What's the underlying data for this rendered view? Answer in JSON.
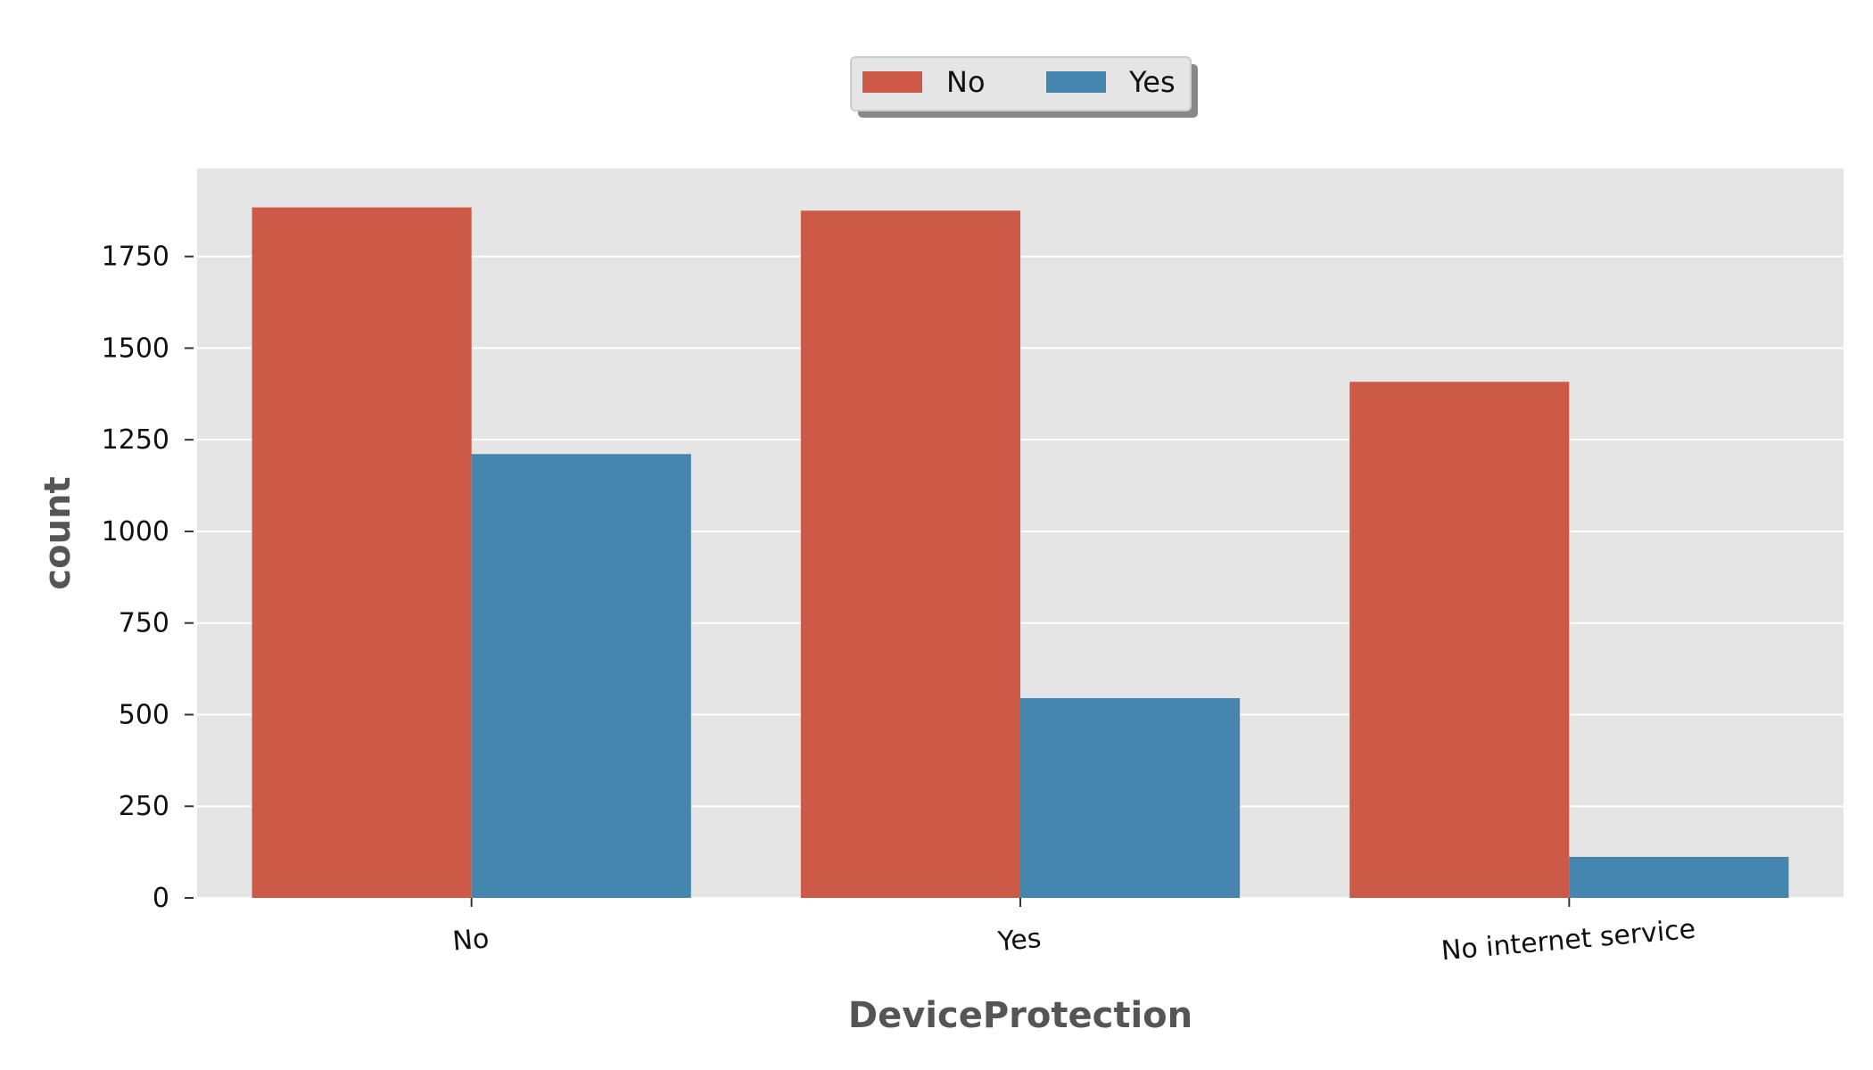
{
  "chart_data": {
    "type": "bar",
    "xlabel": "DeviceProtection",
    "ylabel": "count",
    "categories": [
      "No",
      "Yes",
      "No internet service"
    ],
    "series": [
      {
        "name": "No",
        "color": "#cd5a47",
        "values": [
          1884,
          1875,
          1408
        ]
      },
      {
        "name": "Yes",
        "color": "#4486ad",
        "values": [
          1211,
          545,
          112
        ]
      }
    ],
    "ylim": [
      0,
      1990
    ],
    "yticks": [
      0,
      250,
      500,
      750,
      1000,
      1250,
      1500,
      1750
    ],
    "grid": true,
    "legend_placement": "top-center",
    "plot_background": "#e5e5e5",
    "grid_color": "#ffffff"
  }
}
